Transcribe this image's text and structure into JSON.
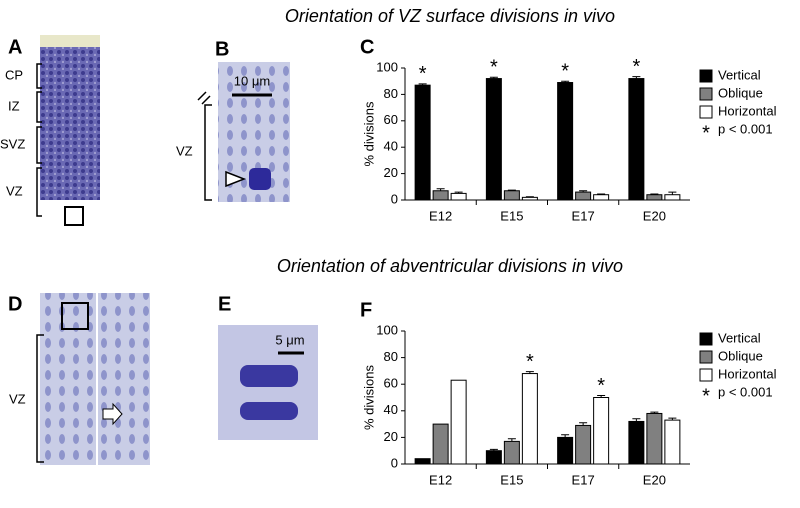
{
  "panels": {
    "A": {
      "letter": "A",
      "labels": [
        "CP",
        "IZ",
        "SVZ",
        "VZ"
      ]
    },
    "B": {
      "letter": "B",
      "scale": "10 μm",
      "label": "VZ"
    },
    "D": {
      "letter": "D",
      "label": "VZ"
    },
    "E": {
      "letter": "E",
      "scale": "5 μm"
    }
  },
  "chart_data": [
    {
      "type": "bar",
      "panel": "C",
      "title": "Orientation of VZ surface divisions in vivo",
      "y_label": "% divisions",
      "categories": [
        "E12",
        "E15",
        "E17",
        "E20"
      ],
      "series": [
        {
          "name": "Vertical",
          "color": "#000000",
          "values": [
            87,
            92,
            89,
            92
          ],
          "errors": [
            1,
            1,
            1,
            1.5
          ]
        },
        {
          "name": "Oblique",
          "color": "#808080",
          "values": [
            7,
            7,
            6,
            4
          ],
          "errors": [
            1.5,
            0.5,
            1,
            0.5
          ]
        },
        {
          "name": "Horizontal",
          "color": "#ffffff",
          "values": [
            5,
            2,
            4,
            4
          ],
          "errors": [
            1,
            0.5,
            0.5,
            2
          ]
        }
      ],
      "annotations": [
        {
          "text": "*",
          "series": 0,
          "category": 0
        },
        {
          "text": "*",
          "series": 0,
          "category": 1
        },
        {
          "text": "*",
          "series": 0,
          "category": 2
        },
        {
          "text": "*",
          "series": 0,
          "category": 3
        }
      ],
      "legend_note": {
        "symbol": "*",
        "text": "p < 0.001"
      },
      "ylim": [
        0,
        100
      ],
      "yticks": [
        0,
        20,
        40,
        60,
        80,
        100
      ]
    },
    {
      "type": "bar",
      "panel": "F",
      "title": "Orientation of abventricular divisions in vivo",
      "y_label": "% divisions",
      "categories": [
        "E12",
        "E15",
        "E17",
        "E20"
      ],
      "series": [
        {
          "name": "Vertical",
          "color": "#000000",
          "values": [
            4,
            10,
            20,
            32
          ],
          "errors": [
            0,
            1,
            2,
            2
          ]
        },
        {
          "name": "Oblique",
          "color": "#808080",
          "values": [
            30,
            17,
            29,
            38
          ],
          "errors": [
            0,
            2,
            2,
            1
          ]
        },
        {
          "name": "Horizontal",
          "color": "#ffffff",
          "values": [
            63,
            68,
            50,
            33
          ],
          "errors": [
            0,
            1.5,
            1.5,
            1.5
          ]
        }
      ],
      "annotations": [
        {
          "text": "*",
          "series": 2,
          "category": 1
        },
        {
          "text": "*",
          "series": 2,
          "category": 2
        }
      ],
      "legend_note": {
        "symbol": "*",
        "text": "p < 0.001"
      },
      "ylim": [
        0,
        100
      ],
      "yticks": [
        0,
        20,
        40,
        60,
        80,
        100
      ]
    }
  ]
}
